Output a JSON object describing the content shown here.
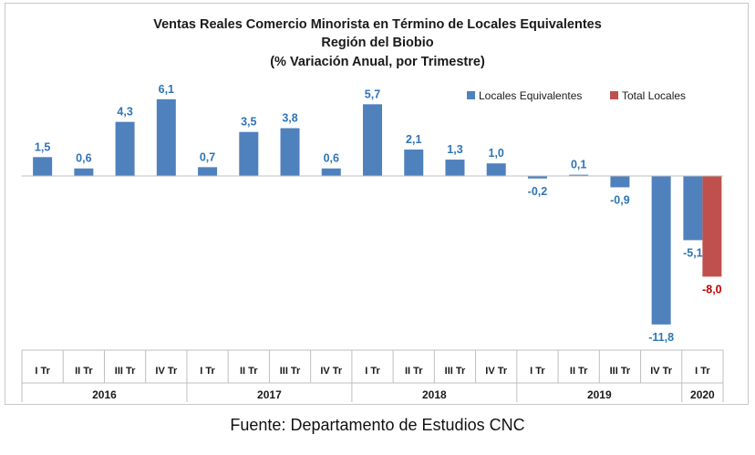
{
  "chart_data": {
    "type": "bar",
    "title": [
      "Ventas Reales Comercio Minorista  en Término de Locales Equivalentes",
      "Región del Biobio",
      "(% Variación Anual, por Trimestre)"
    ],
    "categories": [
      "I Tr",
      "II Tr",
      "III Tr",
      "IV Tr",
      "I Tr",
      "II Tr",
      "III Tr",
      "IV Tr",
      "I Tr",
      "II Tr",
      "III Tr",
      "IV Tr",
      "I Tr",
      "II Tr",
      "III Tr",
      "IV Tr",
      "I Tr"
    ],
    "years": [
      {
        "label": "2016",
        "count": 4
      },
      {
        "label": "2017",
        "count": 4
      },
      {
        "label": "2018",
        "count": 4
      },
      {
        "label": "2019",
        "count": 4
      },
      {
        "label": "2020",
        "count": 1
      }
    ],
    "series": [
      {
        "name": "Locales Equivalentes",
        "color": "#4f81bd",
        "label_color": "#2e75b6",
        "values": [
          1.5,
          0.6,
          4.3,
          6.1,
          0.7,
          3.5,
          3.8,
          0.6,
          5.7,
          2.1,
          1.3,
          1.0,
          -0.2,
          0.1,
          -0.9,
          -11.8,
          -5.1
        ],
        "labels": [
          "1,5",
          "0,6",
          "4,3",
          "6,1",
          "0,7",
          "3,5",
          "3,8",
          "0,6",
          "5,7",
          "2,1",
          "1,3",
          "1,0",
          "-0,2",
          "0,1",
          "-0,9",
          "-11,8",
          "-5,1"
        ]
      },
      {
        "name": "Total Locales",
        "color": "#c0504d",
        "label_color": "#c00000",
        "values": [
          null,
          null,
          null,
          null,
          null,
          null,
          null,
          null,
          null,
          null,
          null,
          null,
          null,
          null,
          null,
          null,
          -8.0
        ],
        "labels": [
          "",
          "",
          "",
          "",
          "",
          "",
          "",
          "",
          "",
          "",
          "",
          "",
          "",
          "",
          "",
          "",
          "-8,0"
        ]
      }
    ],
    "legend_position": "top-right",
    "grid": false
  },
  "source": "Fuente: Departamento de Estudios CNC"
}
